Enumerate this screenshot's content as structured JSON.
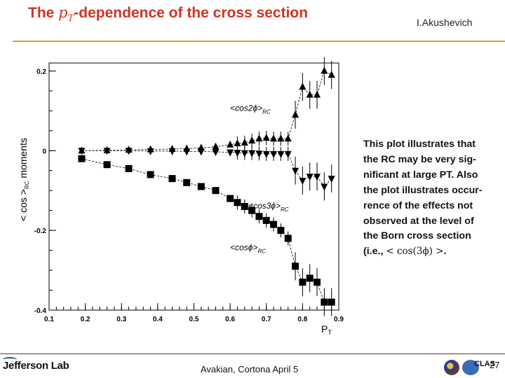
{
  "slide": {
    "title_before": "The ",
    "title_pt_main": "p",
    "title_pt_sub": "T",
    "title_after": "-dependence of the cross section",
    "author": "I.Akushevich",
    "note_lines": [
      "This plot illustrates that",
      "the RC may be very sig-",
      "nificant at large PT. Also",
      "the plot illustrates occur-",
      "rence of the effects not",
      "observed at the level of",
      "the Born cross section"
    ],
    "note_last_prefix": "(i.e., ",
    "note_last_math": "< cos(3ϕ) >",
    "note_last_suffix": ".",
    "footer_text": "Avakian, Cortona  April 5",
    "page_number": "27",
    "lab_logo_text": "Jefferson Lab",
    "logo_text": "CLAS"
  },
  "colors": {
    "title": "#d4321f",
    "rule": "#d7a21a",
    "series": "#000000"
  },
  "chart_data": {
    "type": "scatter",
    "title": "",
    "xlabel": "P",
    "xlabel_sub": "T",
    "ylabel_main": "< cos >",
    "ylabel_sub": "RC",
    "ylabel_tail": " moments",
    "xlim": [
      0.1,
      0.9
    ],
    "ylim": [
      -0.4,
      0.22
    ],
    "xticks": [
      "0.1",
      "0.2",
      "0.3",
      "0.4",
      "0.5",
      "0.6",
      "0.7",
      "0.8",
      "0.9"
    ],
    "yticks": [
      "-0.4",
      "-0.2",
      "0",
      "0.2"
    ],
    "series": [
      {
        "name": "<cos2ϕ>RC",
        "marker": "triangle-up",
        "label_main": "<cos2ϕ>",
        "label_sub": "RC",
        "x": [
          0.19,
          0.26,
          0.32,
          0.38,
          0.44,
          0.48,
          0.52,
          0.56,
          0.6,
          0.62,
          0.64,
          0.66,
          0.68,
          0.7,
          0.72,
          0.74,
          0.76,
          0.78,
          0.8,
          0.82,
          0.84,
          0.86,
          0.88
        ],
        "y": [
          0.0,
          0.001,
          0.002,
          0.003,
          0.004,
          0.005,
          0.007,
          0.01,
          0.015,
          0.018,
          0.02,
          0.025,
          0.03,
          0.032,
          0.03,
          0.03,
          0.03,
          0.09,
          0.16,
          0.14,
          0.14,
          0.2,
          0.19
        ]
      },
      {
        "name": "<cos3ϕ>RC",
        "marker": "triangle-down",
        "label_main": "<cos3ϕ>",
        "label_sub": "RC",
        "x": [
          0.19,
          0.26,
          0.32,
          0.38,
          0.44,
          0.48,
          0.52,
          0.56,
          0.6,
          0.62,
          0.64,
          0.66,
          0.68,
          0.7,
          0.72,
          0.74,
          0.76,
          0.78,
          0.8,
          0.82,
          0.84,
          0.86,
          0.88
        ],
        "y": [
          0.0,
          0.0,
          0.0,
          -0.001,
          -0.001,
          -0.002,
          -0.002,
          -0.003,
          -0.004,
          -0.005,
          -0.006,
          -0.006,
          -0.007,
          -0.008,
          -0.008,
          -0.008,
          -0.008,
          -0.05,
          -0.075,
          -0.065,
          -0.065,
          -0.09,
          -0.07
        ]
      },
      {
        "name": "<cosϕ>RC",
        "marker": "square",
        "label_main": "<cosϕ>",
        "label_sub": "RC",
        "x": [
          0.19,
          0.26,
          0.32,
          0.38,
          0.44,
          0.48,
          0.52,
          0.56,
          0.6,
          0.62,
          0.64,
          0.66,
          0.68,
          0.7,
          0.72,
          0.74,
          0.76,
          0.78,
          0.8,
          0.82,
          0.84,
          0.86,
          0.88
        ],
        "y": [
          -0.02,
          -0.035,
          -0.045,
          -0.06,
          -0.07,
          -0.08,
          -0.09,
          -0.1,
          -0.12,
          -0.13,
          -0.14,
          -0.15,
          -0.165,
          -0.175,
          -0.185,
          -0.2,
          -0.22,
          -0.29,
          -0.33,
          -0.32,
          -0.33,
          -0.38,
          -0.38
        ]
      }
    ]
  }
}
